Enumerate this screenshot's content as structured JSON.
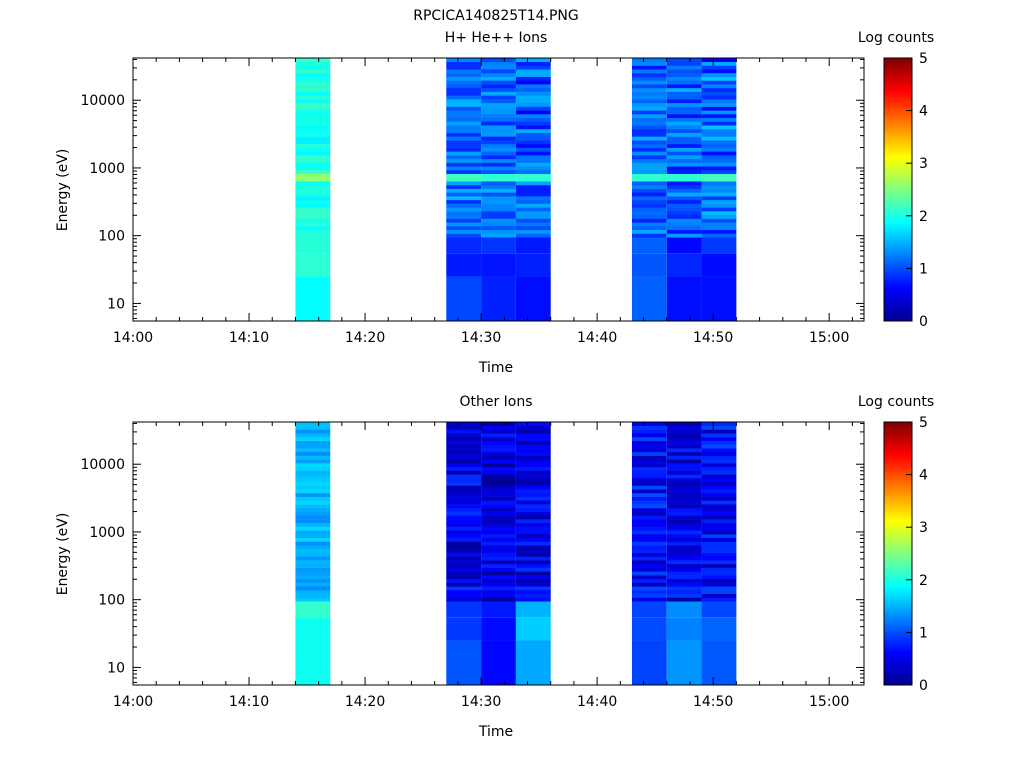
{
  "figure_title": "RPCICA140825T14.PNG",
  "colorbar_levels": [
    "#00008f",
    "#0000ff",
    "#0080ff",
    "#00ffff",
    "#80ff80",
    "#ffff00",
    "#ff8000",
    "#ff0000",
    "#800000"
  ],
  "chart_data": [
    {
      "type": "heatmap",
      "title": "H+ He++ Ions",
      "xlabel": "Time",
      "ylabel": "Energy (eV)",
      "yscale": "log",
      "ylim": [
        5.5,
        42000
      ],
      "xticks": [
        "14:00",
        "14:10",
        "14:20",
        "14:30",
        "14:40",
        "14:50",
        "15:00"
      ],
      "yticks": [
        "10",
        "100",
        "1000",
        "10000"
      ],
      "colorbar": {
        "label": "Log counts",
        "ticks": [
          "0",
          "1",
          "2",
          "3",
          "4",
          "5"
        ],
        "range": [
          0,
          5
        ]
      },
      "columns": [
        {
          "start": "14:14",
          "end": "14:17",
          "lo": 1.8,
          "hi": 2.2,
          "peak": 2.6,
          "low_energy_level": 2.0
        },
        {
          "start": "14:27",
          "end": "14:30",
          "lo": 0.8,
          "hi": 1.6,
          "peak": 2.2,
          "low_energy_level": 0.9
        },
        {
          "start": "14:30",
          "end": "14:33",
          "lo": 0.8,
          "hi": 1.5,
          "peak": 2.1,
          "low_energy_level": 0.8
        },
        {
          "start": "14:33",
          "end": "14:36",
          "lo": 0.6,
          "hi": 1.5,
          "peak": 2.1,
          "low_energy_level": 0.8
        },
        {
          "start": "14:43",
          "end": "14:46",
          "lo": 0.7,
          "hi": 1.5,
          "peak": 2.1,
          "low_energy_level": 1.0
        },
        {
          "start": "14:46",
          "end": "14:49",
          "lo": 0.7,
          "hi": 1.5,
          "peak": 2.1,
          "low_energy_level": 0.7
        },
        {
          "start": "14:49",
          "end": "14:52",
          "lo": 0.6,
          "hi": 1.6,
          "peak": 2.2,
          "low_energy_level": 0.8
        }
      ]
    },
    {
      "type": "heatmap",
      "title": "Other Ions",
      "xlabel": "Time",
      "ylabel": "Energy (eV)",
      "yscale": "log",
      "ylim": [
        5.5,
        42000
      ],
      "xticks": [
        "14:00",
        "14:10",
        "14:20",
        "14:30",
        "14:40",
        "14:50",
        "15:00"
      ],
      "yticks": [
        "10",
        "100",
        "1000",
        "10000"
      ],
      "colorbar": {
        "label": "Log counts",
        "ticks": [
          "0",
          "1",
          "2",
          "3",
          "4",
          "5"
        ],
        "range": [
          0,
          5
        ]
      },
      "columns": [
        {
          "start": "14:14",
          "end": "14:17",
          "lo": 1.3,
          "hi": 1.7,
          "peak": 1.7,
          "low_energy_level": 2.0
        },
        {
          "start": "14:27",
          "end": "14:30",
          "lo": 0.1,
          "hi": 0.9,
          "peak": 0.9,
          "low_energy_level": 0.9
        },
        {
          "start": "14:30",
          "end": "14:33",
          "lo": 0.0,
          "hi": 0.8,
          "peak": 0.8,
          "low_energy_level": 0.6
        },
        {
          "start": "14:33",
          "end": "14:36",
          "lo": 0.1,
          "hi": 0.9,
          "peak": 0.9,
          "low_energy_level": 1.5
        },
        {
          "start": "14:43",
          "end": "14:46",
          "lo": 0.2,
          "hi": 1.0,
          "peak": 1.0,
          "low_energy_level": 1.1
        },
        {
          "start": "14:46",
          "end": "14:49",
          "lo": 0.1,
          "hi": 0.9,
          "peak": 0.9,
          "low_energy_level": 1.3
        },
        {
          "start": "14:49",
          "end": "14:52",
          "lo": 0.2,
          "hi": 1.0,
          "peak": 1.0,
          "low_energy_level": 1.1
        }
      ]
    }
  ]
}
